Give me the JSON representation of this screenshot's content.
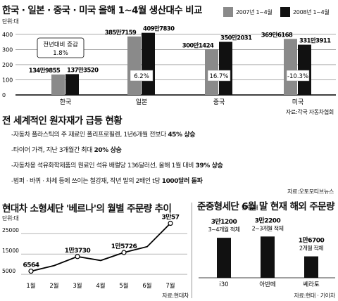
{
  "chart_data": [
    {
      "type": "bar",
      "title": "한국 · 일본 · 중국 · 미국 올해 1~4월 생산대수 비교",
      "unit": "단위:대",
      "categories": [
        "한국",
        "일본",
        "중국",
        "미국"
      ],
      "series": [
        {
          "name": "2007년 1~4월",
          "color": "#8a8a8a",
          "values": [
            1349855,
            3857159,
            3001424,
            3696168
          ],
          "labels": [
            "134만9855",
            "385만7159",
            "300만1424",
            "369만6168"
          ]
        },
        {
          "name": "2008년 1~4월",
          "color": "#111111",
          "values": [
            1373520,
            4097830,
            3502031,
            3313911
          ],
          "labels": [
            "137만3520",
            "409만7830",
            "350만2031",
            "331만3911"
          ]
        }
      ],
      "changes": [
        "1.8%",
        "6.2%",
        "16.7%",
        "-10.3%"
      ],
      "change_caption": "전년대비 증감",
      "yticks": [
        0,
        100,
        200,
        300,
        400
      ],
      "ylim": [
        0,
        450
      ],
      "source": "자료:각국 자동차협회"
    },
    {
      "type": "line",
      "title": "현대차 소형세단 '베르나'의 월별 주문량 추이",
      "unit": "단위:대",
      "categories": [
        "1월",
        "2월",
        "3월",
        "4월",
        "5월",
        "6월",
        "7월"
      ],
      "values": [
        6564,
        9300,
        13730,
        11800,
        15726,
        18600,
        30057
      ],
      "point_labels": [
        {
          "index": 0,
          "text": "6564"
        },
        {
          "index": 2,
          "text": "1만3730"
        },
        {
          "index": 4,
          "text": "1만5726"
        },
        {
          "index": 6,
          "text": "3만57"
        }
      ],
      "yticks": [
        5000,
        15000,
        25000
      ],
      "ylim": [
        4000,
        33000
      ],
      "source": "자료:현대차"
    },
    {
      "type": "bar",
      "title": "준중형세단 6월 말 현재 해외 주문량",
      "unit": "단위:대",
      "categories": [
        "i30",
        "아반떼",
        "쎄라토"
      ],
      "values": [
        31200,
        32200,
        16700
      ],
      "value_labels": [
        "3만1200",
        "3만2200",
        "1만6700"
      ],
      "notes": [
        "3~4개월 적체",
        "2~3개월 적체",
        "2개월 적체"
      ],
      "source": "자료:현대 · 기아차"
    }
  ],
  "section2": {
    "title": "전 세계적인 원자재가 급등 현황",
    "items": [
      {
        "text": "-자동차 플라스틱의 주 재료인 폴리프로필렌, 1년6개월 전보다 ",
        "bold": "45% 상승"
      },
      {
        "text": "-타이어 가격, 지난 3개월간 최대 ",
        "bold": "20% 상승"
      },
      {
        "text": "-자동차용 석유화학제품의 원료인 석유 배럴당 136달러선, 올해 1월 대비 ",
        "bold": "39% 상승"
      },
      {
        "text": "-범퍼 · 바퀴 · 차체 등에 쓰이는 철강재, 작년 말의 2배인 t당 ",
        "bold": "1000달러 돌파"
      }
    ],
    "source": "자료:오토모티브뉴스"
  }
}
